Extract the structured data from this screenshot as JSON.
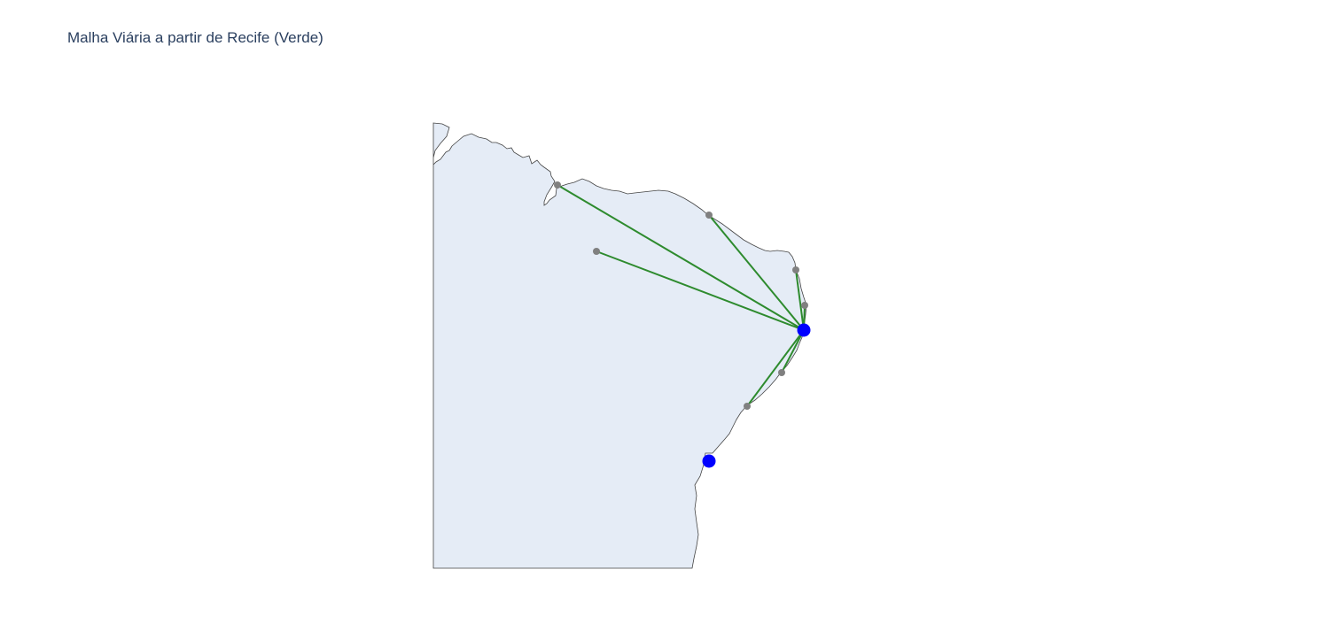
{
  "title": "Malha Viária a partir de Recife (Verde)",
  "map": {
    "land_color": "#e5ecf6",
    "coast_color": "#444444",
    "route_color": "#2e8b2e",
    "node_color": "#808080",
    "hub_color": "#0000ff",
    "hubs": [
      {
        "lon": -34.88,
        "lat": -8.05
      },
      {
        "lon": -35.73,
        "lat": -9.66
      }
    ],
    "routes_from": {
      "lon": -34.88,
      "lat": -8.05
    },
    "destinations": [
      {
        "lon": -38.52,
        "lat": -3.72
      },
      {
        "lon": -37.05,
        "lat": -5.3
      },
      {
        "lon": -35.21,
        "lat": -5.79
      },
      {
        "lon": -34.86,
        "lat": -7.12
      },
      {
        "lon": -35.1,
        "lat": -8.8
      },
      {
        "lon": -35.6,
        "lat": -9.2
      },
      {
        "lon": -36.8,
        "lat": -6.0
      }
    ]
  }
}
